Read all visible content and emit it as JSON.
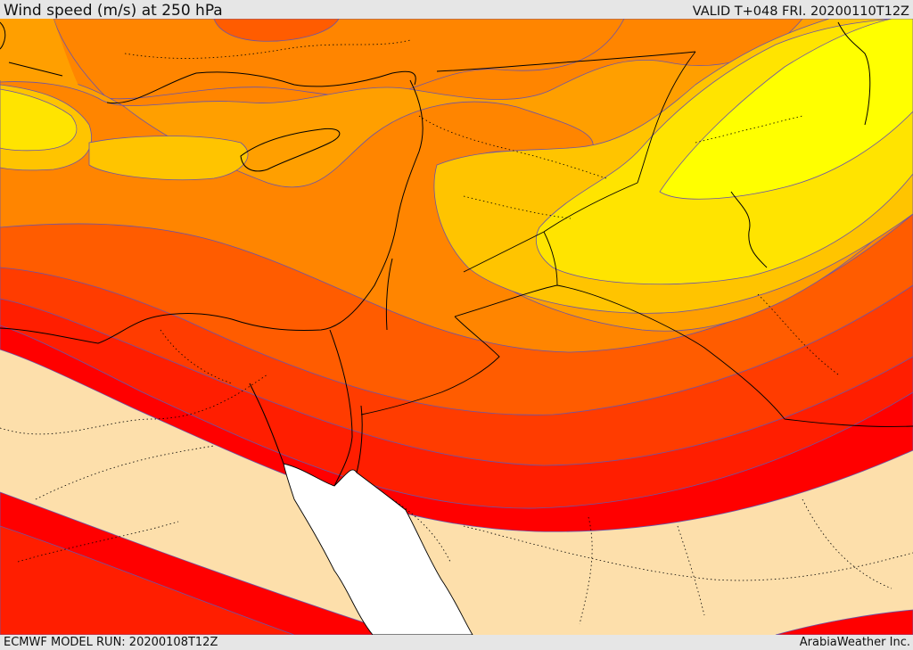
{
  "header": {
    "title": "Wind speed (m/s) at 250 hPa",
    "valid_time": "VALID T+048 FRI. 20200110T12Z"
  },
  "footer": {
    "model_run": "ECMWF MODEL RUN: 20200108T12Z",
    "credit": "ArabiaWeather Inc."
  },
  "colors": {
    "background_land": "#fddfab",
    "sea_white": "#ffffff",
    "wind_levels": [
      "#ffff00",
      "#ffe400",
      "#ffc400",
      "#ff9f00",
      "#ff8500",
      "#ff5c00",
      "#ff3c00",
      "#ff1e00",
      "#ff0000"
    ],
    "contour_line": "#6b54a8",
    "border_line": "#000000"
  }
}
